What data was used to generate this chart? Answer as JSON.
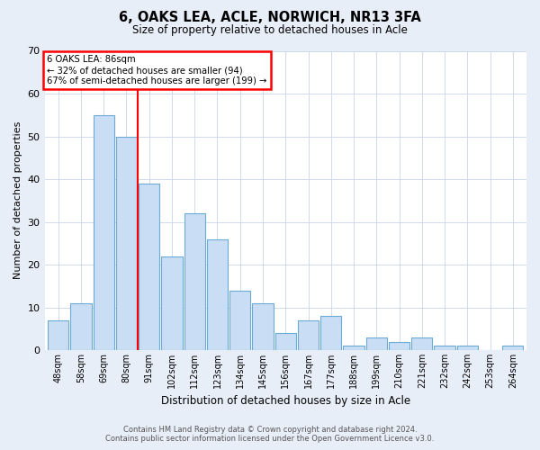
{
  "title": "6, OAKS LEA, ACLE, NORWICH, NR13 3FA",
  "subtitle": "Size of property relative to detached houses in Acle",
  "xlabel": "Distribution of detached houses by size in Acle",
  "ylabel": "Number of detached properties",
  "categories": [
    "48sqm",
    "58sqm",
    "69sqm",
    "80sqm",
    "91sqm",
    "102sqm",
    "112sqm",
    "123sqm",
    "134sqm",
    "145sqm",
    "156sqm",
    "167sqm",
    "177sqm",
    "188sqm",
    "199sqm",
    "210sqm",
    "221sqm",
    "232sqm",
    "242sqm",
    "253sqm",
    "264sqm"
  ],
  "values": [
    7,
    11,
    55,
    50,
    39,
    22,
    32,
    26,
    14,
    11,
    4,
    7,
    8,
    1,
    3,
    2,
    3,
    1,
    1,
    0,
    1
  ],
  "bar_color": "#c9ddf5",
  "bar_edge_color": "#6aaad4",
  "ylim": [
    0,
    70
  ],
  "yticks": [
    0,
    10,
    20,
    30,
    40,
    50,
    60,
    70
  ],
  "red_line_x": 3.5,
  "annotation_title": "6 OAKS LEA: 86sqm",
  "annotation_line1": "← 32% of detached houses are smaller (94)",
  "annotation_line2": "67% of semi-detached houses are larger (199) →",
  "footer_line1": "Contains HM Land Registry data © Crown copyright and database right 2024.",
  "footer_line2": "Contains public sector information licensed under the Open Government Licence v3.0.",
  "background_color": "#e8eef8",
  "plot_bg_color": "#ffffff",
  "grid_color": "#c8d4e8"
}
